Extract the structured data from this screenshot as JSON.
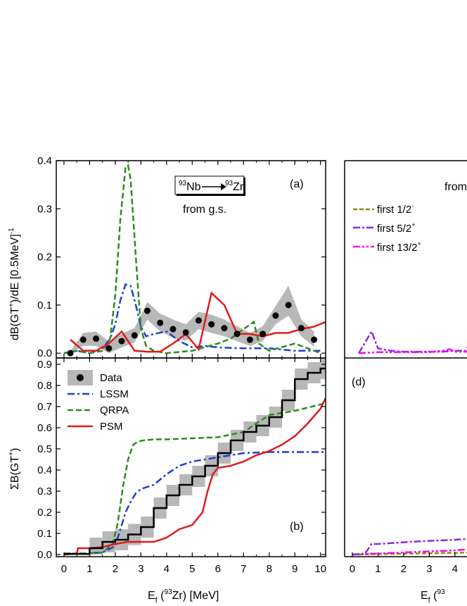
{
  "figure": {
    "xlabel": "E_f (⁹³Zr) [MeV]",
    "right_xlabel_partial": "E_f (⁹³",
    "colors": {
      "LSSM": "#1f3fd1",
      "QRPA": "#2e8b1f",
      "PSM": "#e01b1b",
      "Data": "#000000",
      "band": "#b8b8b8",
      "first_1_2": "#8b8b00",
      "first_5_2": "#8b2be2",
      "first_13_2": "#ff00ff"
    }
  },
  "chart_data": [
    {
      "panel": "a",
      "type": "line",
      "panel_label": "(a)",
      "reaction": {
        "from": "93",
        "from_el": "Nb",
        "to": "93",
        "to_el": "Zr"
      },
      "subtitle": "from g.s.",
      "ylabel": "dB(GT⁺)/dE [0.5MeV]⁻¹",
      "xlim": [
        -0.3,
        10.2
      ],
      "ylim": [
        -0.01,
        0.4
      ],
      "xticks": [
        "0",
        "1",
        "2",
        "3",
        "4",
        "5",
        "6",
        "7",
        "8",
        "9",
        "10"
      ],
      "yticks": [
        "0.0",
        "0.1",
        "0.2",
        "0.3",
        "0.4"
      ],
      "data_points": {
        "name": "Data",
        "x": [
          0.25,
          0.75,
          1.25,
          1.75,
          2.25,
          2.75,
          3.25,
          3.75,
          4.25,
          4.75,
          5.25,
          5.75,
          6.25,
          6.75,
          7.25,
          7.75,
          8.25,
          8.75,
          9.25,
          9.75
        ],
        "y": [
          0.0,
          0.028,
          0.03,
          0.01,
          0.025,
          0.037,
          0.088,
          0.063,
          0.05,
          0.043,
          0.068,
          0.06,
          0.052,
          0.04,
          0.028,
          0.04,
          0.078,
          0.1,
          0.052,
          0.028
        ],
        "band_low": [
          0.0,
          0.015,
          0.015,
          0.0,
          0.012,
          0.022,
          0.07,
          0.045,
          0.032,
          0.026,
          0.05,
          0.042,
          0.035,
          0.025,
          0.015,
          0.025,
          0.06,
          0.078,
          0.035,
          0.013
        ],
        "band_high": [
          0.005,
          0.042,
          0.045,
          0.024,
          0.04,
          0.052,
          0.106,
          0.082,
          0.07,
          0.06,
          0.086,
          0.08,
          0.07,
          0.056,
          0.042,
          0.056,
          0.098,
          0.14,
          0.07,
          0.045
        ]
      },
      "series": [
        {
          "name": "LSSM",
          "x": [
            0,
            0.5,
            1,
            1.5,
            1.8,
            2.0,
            2.2,
            2.4,
            2.6,
            2.8,
            3.0,
            3.2,
            3.5,
            4.0,
            4.5,
            5.0,
            5.5,
            6,
            7,
            8,
            9,
            10
          ],
          "y": [
            0.0,
            0.005,
            0.0,
            0.01,
            0.03,
            0.06,
            0.11,
            0.143,
            0.14,
            0.1,
            0.055,
            0.035,
            0.04,
            0.045,
            0.025,
            0.012,
            0.015,
            0.012,
            0.01,
            0.01,
            0.005,
            0.005
          ]
        },
        {
          "name": "QRPA",
          "x": [
            0,
            0.5,
            1,
            1.5,
            1.8,
            2.0,
            2.2,
            2.4,
            2.5,
            2.6,
            2.8,
            3.0,
            3.2,
            3.5,
            4,
            5,
            6,
            6.5,
            7,
            7.4,
            7.6,
            8,
            9,
            10
          ],
          "y": [
            0.0,
            0.005,
            0.0,
            0.005,
            0.03,
            0.12,
            0.28,
            0.385,
            0.39,
            0.36,
            0.2,
            0.05,
            0.015,
            0.005,
            0.0,
            0.005,
            0.02,
            0.03,
            0.05,
            0.065,
            0.02,
            0.005,
            0.02,
            0.0
          ],
          "dash": "8,4"
        },
        {
          "name": "PSM",
          "x": [
            0.25,
            0.75,
            1.25,
            1.75,
            2.25,
            2.75,
            3.25,
            3.75,
            4.25,
            4.75,
            5.25,
            5.75,
            6.25,
            6.75,
            7.25,
            7.75,
            8.25,
            8.75,
            9.25,
            9.75,
            10.2
          ],
          "y": [
            0.028,
            0.005,
            0.005,
            0.02,
            0.045,
            0.005,
            0.003,
            0.003,
            0.02,
            0.04,
            0.008,
            0.125,
            0.1,
            0.04,
            0.04,
            0.035,
            0.042,
            0.042,
            0.05,
            0.055,
            0.065
          ]
        }
      ]
    },
    {
      "panel": "b",
      "type": "line",
      "panel_label": "(b)",
      "ylabel": "ΣB(GT⁺)",
      "xlim": [
        -0.3,
        10.2
      ],
      "ylim": [
        -0.01,
        0.93
      ],
      "xticks": [
        "0",
        "1",
        "2",
        "3",
        "4",
        "5",
        "6",
        "7",
        "8",
        "9",
        "10"
      ],
      "yticks": [
        "0.0",
        "0.1",
        "0.2",
        "0.3",
        "0.4",
        "0.5",
        "0.6",
        "0.7",
        "0.8",
        "0.9"
      ],
      "legend": [
        "Data",
        "LSSM",
        "QRPA",
        "PSM"
      ],
      "data_steps": {
        "name": "Data",
        "x": [
          0,
          0.5,
          1,
          1.5,
          2,
          2.5,
          3,
          3.5,
          4,
          4.5,
          5,
          5.5,
          6,
          6.5,
          7,
          7.5,
          8,
          8.5,
          9,
          9.5,
          10,
          10.2
        ],
        "y": [
          0.003,
          0.003,
          0.03,
          0.06,
          0.07,
          0.095,
          0.13,
          0.22,
          0.28,
          0.33,
          0.37,
          0.42,
          0.48,
          0.54,
          0.58,
          0.61,
          0.65,
          0.73,
          0.83,
          0.86,
          0.88,
          0.88
        ],
        "band": 0.05
      },
      "series": [
        {
          "name": "LSSM",
          "x": [
            0,
            0.8,
            1.5,
            2.0,
            2.2,
            2.4,
            2.6,
            2.8,
            3.0,
            3.5,
            4,
            4.5,
            5,
            6,
            7,
            8,
            9,
            10,
            10.2
          ],
          "y": [
            0.005,
            0.005,
            0.01,
            0.04,
            0.12,
            0.2,
            0.25,
            0.29,
            0.31,
            0.33,
            0.38,
            0.42,
            0.44,
            0.46,
            0.48,
            0.485,
            0.485,
            0.485,
            0.485
          ]
        },
        {
          "name": "QRPA",
          "x": [
            0,
            0.8,
            1.5,
            1.9,
            2.1,
            2.3,
            2.5,
            2.7,
            2.9,
            3.1,
            3.5,
            4,
            5,
            6,
            7,
            7.5,
            8,
            9,
            10,
            10.2
          ],
          "y": [
            0.005,
            0.005,
            0.01,
            0.05,
            0.15,
            0.32,
            0.45,
            0.52,
            0.535,
            0.54,
            0.545,
            0.545,
            0.55,
            0.555,
            0.58,
            0.62,
            0.66,
            0.68,
            0.71,
            0.72
          ]
        },
        {
          "name": "PSM",
          "x": [
            0,
            0.5,
            0.55,
            1.0,
            1.5,
            2,
            2.5,
            3,
            3.5,
            4,
            4.5,
            5,
            5.4,
            5.6,
            5.8,
            6,
            6.5,
            7,
            7.5,
            8,
            8.5,
            9,
            9.5,
            10,
            10.2
          ],
          "y": [
            0.0,
            0.005,
            0.03,
            0.03,
            0.035,
            0.05,
            0.06,
            0.06,
            0.06,
            0.08,
            0.12,
            0.14,
            0.2,
            0.3,
            0.38,
            0.41,
            0.42,
            0.44,
            0.47,
            0.49,
            0.52,
            0.56,
            0.62,
            0.69,
            0.74
          ],
          "dash": ""
        }
      ]
    }
  ],
  "right_panels": {
    "c": {
      "title_partial": "from",
      "legend": [
        "first 1/2⁻",
        "first 5/2⁺",
        "first 13/2⁺"
      ],
      "first_5_2": {
        "x": [
          0.25,
          0.75,
          1.0,
          1.5,
          2,
          2.5,
          3,
          3.5,
          4,
          4.4,
          4.6
        ],
        "y": [
          0.0,
          0.045,
          0.01,
          0.005,
          0.003,
          0.003,
          0.003,
          0.003,
          0.005,
          0.005,
          0.02
        ]
      },
      "first_13_2": {
        "x": [
          0.25,
          1,
          2,
          3,
          3.5,
          3.8,
          4,
          4.6
        ],
        "y": [
          0.0,
          0.002,
          0.002,
          0.002,
          0.005,
          0.008,
          0.003,
          0.003
        ]
      }
    },
    "d": {
      "label": "(d)",
      "first_5_2": {
        "x": [
          0,
          0.5,
          0.75,
          1,
          2,
          3,
          4,
          4.6
        ],
        "y": [
          0.0,
          0.005,
          0.05,
          0.05,
          0.058,
          0.065,
          0.07,
          0.075
        ]
      },
      "first_13_2": {
        "x": [
          0,
          1,
          2,
          3,
          4,
          4.6
        ],
        "y": [
          0.0,
          0.005,
          0.01,
          0.015,
          0.02,
          0.025
        ]
      },
      "first_1_2": {
        "x": [
          0,
          1,
          2,
          3,
          4,
          4.6
        ],
        "y": [
          0.0,
          0.002,
          0.004,
          0.006,
          0.008,
          0.01
        ]
      },
      "xticks": [
        "0",
        "1",
        "2",
        "3",
        "4"
      ]
    }
  }
}
